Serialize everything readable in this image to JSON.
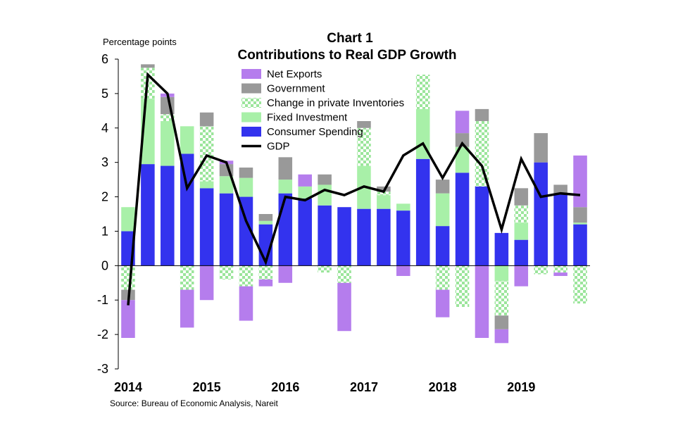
{
  "chart_data": {
    "type": "bar",
    "title": "Chart 1",
    "subtitle": "Contributions to Real GDP Growth",
    "unit_label": "Percentage points",
    "source": "Source:  Bureau of Economic Analysis, Nareit",
    "ylim": [
      -3,
      6
    ],
    "yticks": [
      "6",
      "5",
      "4",
      "3",
      "2",
      "1",
      "0",
      "-1",
      "-2",
      "-3"
    ],
    "ytick_values": [
      6,
      5,
      4,
      3,
      2,
      1,
      0,
      -1,
      -2,
      -3
    ],
    "year_labels": [
      {
        "label": "2014",
        "quarter_index": 0
      },
      {
        "label": "2015",
        "quarter_index": 4
      },
      {
        "label": "2016",
        "quarter_index": 8
      },
      {
        "label": "2017",
        "quarter_index": 12
      },
      {
        "label": "2018",
        "quarter_index": 16
      },
      {
        "label": "2019",
        "quarter_index": 20
      }
    ],
    "legend_position": "top-center",
    "stack_order": [
      "consumer_spending",
      "fixed_investment",
      "inventories",
      "government",
      "net_exports"
    ],
    "series": [
      {
        "key": "net_exports",
        "name": "Net Exports",
        "color": "#b57ded",
        "pattern": "solid",
        "values": [
          -1.1,
          0.0,
          0.1,
          -1.1,
          -1.0,
          0.1,
          -1.0,
          -0.2,
          -0.5,
          0.35,
          0.0,
          -1.4,
          0.0,
          0.0,
          -0.3,
          0.0,
          -0.8,
          0.65,
          -2.1,
          -0.4,
          -0.6,
          0.0,
          -0.1,
          1.5
        ]
      },
      {
        "key": "government",
        "name": "Government",
        "color": "#999999",
        "pattern": "solid",
        "values": [
          -0.3,
          0.1,
          0.5,
          0.0,
          0.4,
          0.35,
          0.3,
          0.2,
          0.65,
          0.0,
          0.3,
          0.0,
          0.2,
          0.15,
          0.0,
          0.0,
          0.4,
          0.4,
          0.35,
          -0.4,
          0.5,
          0.85,
          0.25,
          0.45
        ]
      },
      {
        "key": "inventories",
        "name": "Change in private Inventories",
        "color": "#9be59b",
        "pattern": "checker",
        "values": [
          -0.7,
          0.9,
          0.2,
          -0.7,
          1.6,
          -0.4,
          -0.6,
          -0.4,
          0.0,
          0.0,
          -0.2,
          -0.5,
          1.1,
          0.1,
          0.0,
          1.0,
          -0.7,
          -1.2,
          1.9,
          -1.0,
          0.5,
          -0.25,
          -0.2,
          -1.1
        ]
      },
      {
        "key": "fixed_investment",
        "name": "Fixed Investment",
        "color": "#a8f0a8",
        "pattern": "solid",
        "values": [
          0.7,
          1.9,
          1.3,
          0.8,
          0.2,
          0.5,
          0.55,
          0.1,
          0.4,
          0.35,
          0.6,
          0.0,
          1.25,
          0.4,
          0.2,
          1.45,
          0.95,
          0.75,
          0.0,
          -0.45,
          0.5,
          0.0,
          0.0,
          0.05
        ]
      },
      {
        "key": "consumer_spending",
        "name": "Consumer Spending",
        "color": "#3333ee",
        "pattern": "solid",
        "values": [
          1.0,
          2.95,
          2.9,
          3.25,
          2.25,
          2.1,
          2.0,
          1.2,
          2.1,
          1.95,
          1.75,
          1.7,
          1.65,
          1.65,
          1.6,
          3.1,
          1.15,
          2.7,
          2.3,
          0.95,
          0.75,
          3.0,
          2.1,
          1.2
        ]
      }
    ],
    "line": {
      "name": "GDP",
      "color": "#000000",
      "values": [
        -1.15,
        5.55,
        5.0,
        2.25,
        3.2,
        3.0,
        1.3,
        0.1,
        2.0,
        1.9,
        2.2,
        2.05,
        2.3,
        2.15,
        3.2,
        3.55,
        2.55,
        3.55,
        2.9,
        1.05,
        3.1,
        2.0,
        2.1,
        2.05
      ]
    },
    "legend": [
      {
        "key": "net_exports",
        "label": "Net Exports"
      },
      {
        "key": "government",
        "label": "Government"
      },
      {
        "key": "inventories",
        "label": "Change in private Inventories"
      },
      {
        "key": "fixed_investment",
        "label": "Fixed Investment"
      },
      {
        "key": "consumer_spending",
        "label": "Consumer Spending"
      },
      {
        "key": "gdp",
        "label": "GDP"
      }
    ]
  }
}
